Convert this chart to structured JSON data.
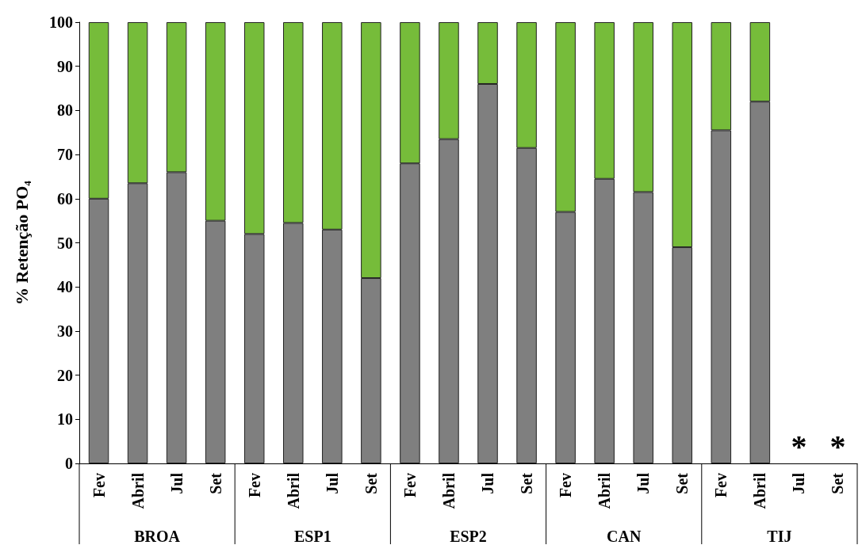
{
  "chart_data": {
    "type": "bar",
    "stacked": true,
    "ylabel": "% Retenção PO₄",
    "categories": [
      "Fev",
      "Abril",
      "Jul",
      "Set",
      "Fev",
      "Abril",
      "Jul",
      "Set",
      "Fev",
      "Abril",
      "Jul",
      "Set",
      "Fev",
      "Abril",
      "Jul",
      "Set",
      "Fev",
      "Abril",
      "Jul",
      "Set"
    ],
    "series": [
      {
        "color": "#7f7f7f",
        "values": [
          60,
          63.5,
          66,
          55,
          52,
          54.5,
          53,
          42,
          68,
          73.5,
          86,
          71.5,
          57,
          64.5,
          61.5,
          49,
          75.5,
          82,
          null,
          null
        ]
      },
      {
        "color": "#76bc3a",
        "values": [
          40,
          36.5,
          34,
          45,
          48,
          45.5,
          47,
          58,
          32,
          26.5,
          14,
          28.5,
          43,
          35.5,
          38.5,
          51,
          24.5,
          18,
          null,
          null
        ]
      }
    ],
    "ylim": [
      0,
      100
    ],
    "yticks": [
      0,
      10,
      20,
      30,
      40,
      50,
      60,
      70,
      80,
      90,
      100
    ],
    "grid": false,
    "annotations": [
      "BROA",
      "ESP1",
      "ESP2",
      "CAN",
      "TIJ",
      "*",
      "*"
    ]
  }
}
